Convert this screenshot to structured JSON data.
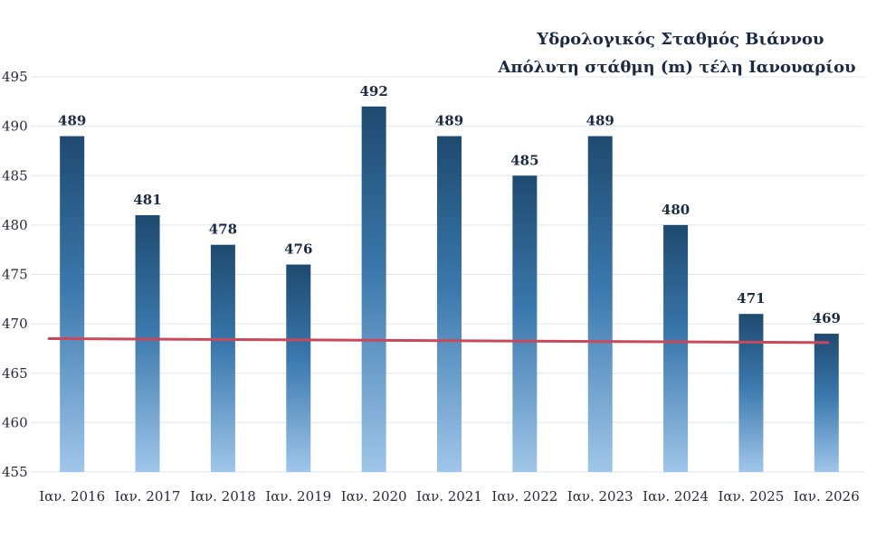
{
  "chart_data": {
    "type": "bar",
    "title": "Υδρολογικός Σταθμός Βιάννου",
    "subtitle": "Απόλυτη στάθμη (m) τέλη Ιανουαρίου",
    "categories": [
      "Ιαν. 2016",
      "Ιαν. 2017",
      "Ιαν. 2018",
      "Ιαν. 2019",
      "Ιαν. 2020",
      "Ιαν. 2021",
      "Ιαν. 2022",
      "Ιαν. 2023",
      "Ιαν. 2024",
      "Ιαν. 2025",
      "Ιαν. 2026"
    ],
    "values": [
      489,
      481,
      478,
      476,
      492,
      489,
      485,
      489,
      480,
      471,
      469
    ],
    "value_labels": [
      "489",
      "481",
      "478",
      "476",
      "492",
      "489",
      "485",
      "489",
      "480",
      "471",
      "469"
    ],
    "ylim": [
      455,
      495
    ],
    "yticks": [
      455,
      460,
      465,
      470,
      475,
      480,
      485,
      490,
      495
    ],
    "ytick_labels": [
      "455",
      "460",
      "465",
      "470",
      "475",
      "480",
      "485",
      "490",
      "495"
    ],
    "reference_line": {
      "start_value": 468.5,
      "end_value": 468.1
    },
    "xlabel": "",
    "ylabel": "",
    "grid": true,
    "colors": {
      "bar_top": "#1e4a70",
      "bar_mid": "#3a78ad",
      "bar_bottom": "#9fc6ea",
      "reference_line": "#c9485a",
      "grid": "#dfe6ee"
    }
  }
}
